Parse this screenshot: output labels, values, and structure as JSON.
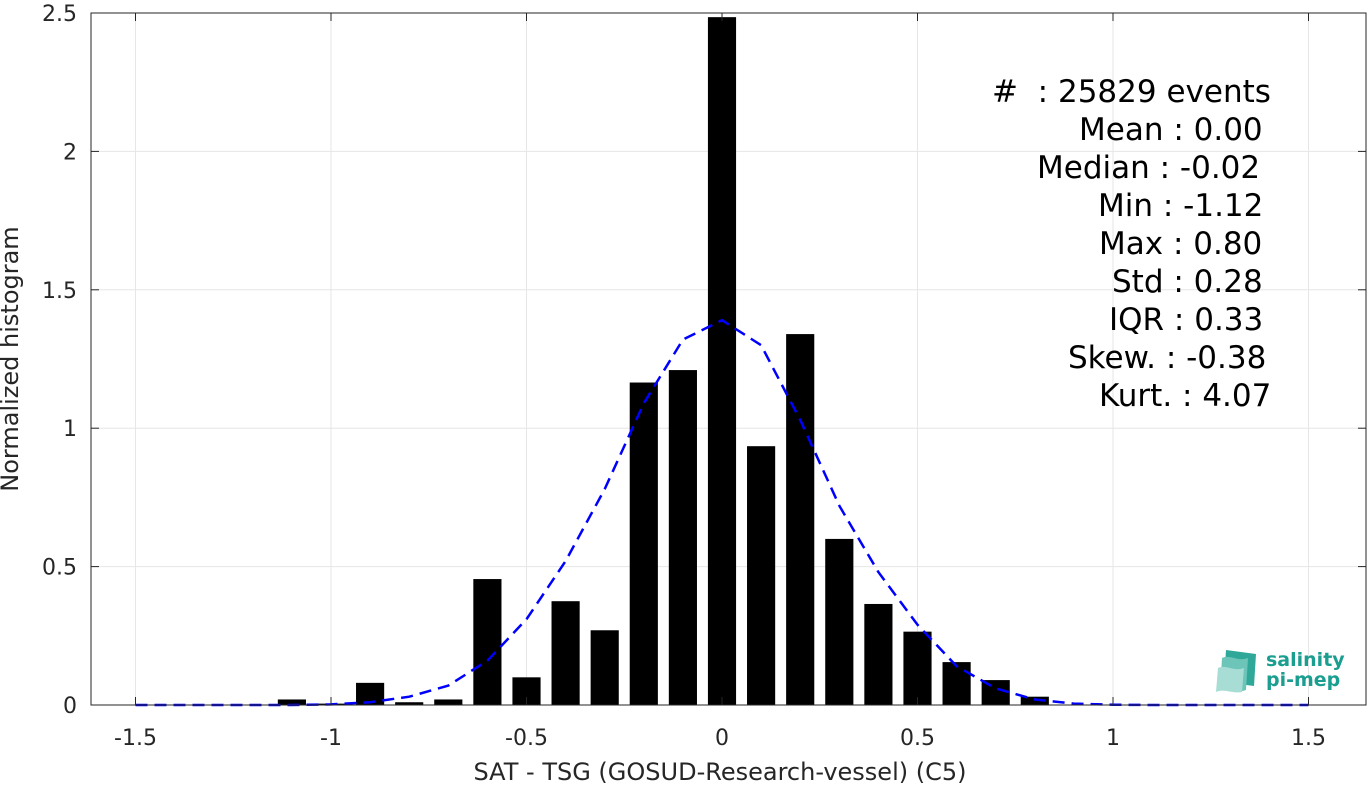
{
  "chart_data": {
    "type": "bar",
    "xlabel": "SAT - TSG (GOSUD-Research-vessel) (C5)",
    "ylabel": "Normalized histogram",
    "xlim": [
      -1.5,
      1.5
    ],
    "ylim": [
      0,
      2.5
    ],
    "grid": true,
    "x_ticks": [
      "-1.5",
      "-1",
      "-0.5",
      "0",
      "0.5",
      "1",
      "1.5"
    ],
    "y_ticks": [
      "0",
      "0.5",
      "1",
      "1.5",
      "2",
      "2.5"
    ],
    "bars": {
      "x": [
        -1.1,
        -1.0,
        -0.9,
        -0.8,
        -0.7,
        -0.6,
        -0.5,
        -0.4,
        -0.3,
        -0.2,
        -0.1,
        0.0,
        0.1,
        0.2,
        0.3,
        0.4,
        0.5,
        0.6,
        0.7,
        0.8
      ],
      "values": [
        0.02,
        0.005,
        0.08,
        0.01,
        0.02,
        0.455,
        0.1,
        0.375,
        0.27,
        1.165,
        1.21,
        2.485,
        0.935,
        1.34,
        0.6,
        0.365,
        0.265,
        0.155,
        0.09,
        0.03
      ],
      "color": "#000000"
    },
    "fit_curve": {
      "style": "dashed",
      "color": "#0000ff",
      "x": [
        -1.5,
        -1.4,
        -1.3,
        -1.2,
        -1.1,
        -1.0,
        -0.9,
        -0.8,
        -0.7,
        -0.6,
        -0.5,
        -0.4,
        -0.3,
        -0.2,
        -0.1,
        0.0,
        0.1,
        0.2,
        0.3,
        0.4,
        0.5,
        0.6,
        0.7,
        0.8,
        0.9,
        1.0,
        1.1,
        1.2,
        1.3,
        1.4,
        1.5
      ],
      "y": [
        0.0,
        0.0,
        0.0,
        0.0,
        0.0,
        0.002,
        0.01,
        0.03,
        0.07,
        0.16,
        0.31,
        0.52,
        0.78,
        1.09,
        1.32,
        1.39,
        1.3,
        1.03,
        0.72,
        0.48,
        0.29,
        0.14,
        0.06,
        0.02,
        0.005,
        0.001,
        0.0,
        0.0,
        0.0,
        0.0,
        0.0
      ]
    },
    "stats": [
      "#  : 25829 events",
      "Mean : 0.00",
      "Median : -0.02",
      "Min : -1.12",
      "Max : 0.80",
      "Std : 0.28",
      "IQR : 0.33",
      "Skew. : -0.38",
      "Kurt. : 4.07"
    ]
  },
  "logo": {
    "line1": "salinity",
    "line2": "pi-mep",
    "color": "#1a9e8f"
  }
}
